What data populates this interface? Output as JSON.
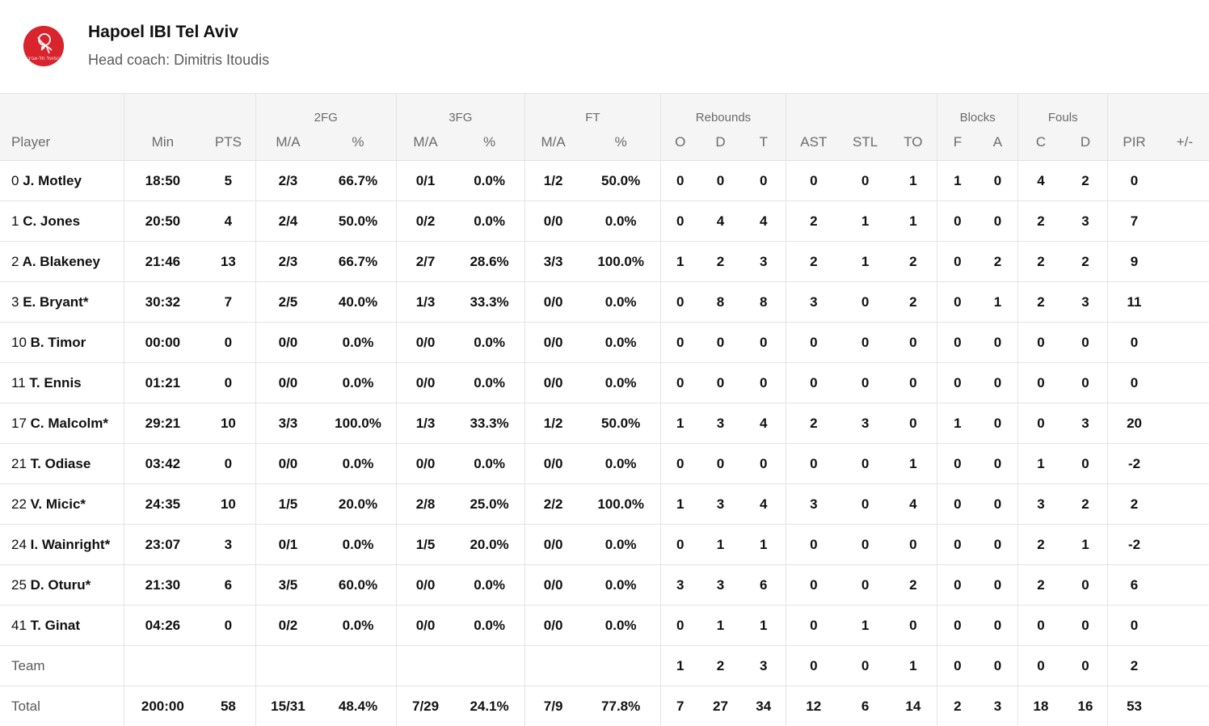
{
  "team": {
    "name": "Hapoel IBI Tel Aviv",
    "coach": "Head coach: Dimitris Itoudis",
    "logo_text": "הפועל תל-אביב",
    "accent_color": "#d9232d"
  },
  "groups": {
    "fg2": "2FG",
    "fg3": "3FG",
    "ft": "FT",
    "rebounds": "Rebounds",
    "blocks": "Blocks",
    "fouls": "Fouls"
  },
  "columns": {
    "player": "Player",
    "min": "Min",
    "pts": "PTS",
    "fg2_ma": "M/A",
    "fg2_pct": "%",
    "fg3_ma": "M/A",
    "fg3_pct": "%",
    "ft_ma": "M/A",
    "ft_pct": "%",
    "reb_o": "O",
    "reb_d": "D",
    "reb_t": "T",
    "ast": "AST",
    "stl": "STL",
    "to": "TO",
    "blk_f": "F",
    "blk_a": "A",
    "foul_c": "C",
    "foul_d": "D",
    "pir": "PIR",
    "pm": "+/-"
  },
  "rows": [
    {
      "num": "0",
      "name": "J. Motley",
      "min": "18:50",
      "pts": "5",
      "fg2_ma": "2/3",
      "fg2_pct": "66.7%",
      "fg3_ma": "0/1",
      "fg3_pct": "0.0%",
      "ft_ma": "1/2",
      "ft_pct": "50.0%",
      "reb_o": "0",
      "reb_d": "0",
      "reb_t": "0",
      "ast": "0",
      "stl": "0",
      "to": "1",
      "blk_f": "1",
      "blk_a": "0",
      "foul_c": "4",
      "foul_d": "2",
      "pir": "0",
      "pm": ""
    },
    {
      "num": "1",
      "name": "C. Jones",
      "min": "20:50",
      "pts": "4",
      "fg2_ma": "2/4",
      "fg2_pct": "50.0%",
      "fg3_ma": "0/2",
      "fg3_pct": "0.0%",
      "ft_ma": "0/0",
      "ft_pct": "0.0%",
      "reb_o": "0",
      "reb_d": "4",
      "reb_t": "4",
      "ast": "2",
      "stl": "1",
      "to": "1",
      "blk_f": "0",
      "blk_a": "0",
      "foul_c": "2",
      "foul_d": "3",
      "pir": "7",
      "pm": ""
    },
    {
      "num": "2",
      "name": "A. Blakeney",
      "min": "21:46",
      "pts": "13",
      "fg2_ma": "2/3",
      "fg2_pct": "66.7%",
      "fg3_ma": "2/7",
      "fg3_pct": "28.6%",
      "ft_ma": "3/3",
      "ft_pct": "100.0%",
      "reb_o": "1",
      "reb_d": "2",
      "reb_t": "3",
      "ast": "2",
      "stl": "1",
      "to": "2",
      "blk_f": "0",
      "blk_a": "2",
      "foul_c": "2",
      "foul_d": "2",
      "pir": "9",
      "pm": ""
    },
    {
      "num": "3",
      "name": "E. Bryant*",
      "min": "30:32",
      "pts": "7",
      "fg2_ma": "2/5",
      "fg2_pct": "40.0%",
      "fg3_ma": "1/3",
      "fg3_pct": "33.3%",
      "ft_ma": "0/0",
      "ft_pct": "0.0%",
      "reb_o": "0",
      "reb_d": "8",
      "reb_t": "8",
      "ast": "3",
      "stl": "0",
      "to": "2",
      "blk_f": "0",
      "blk_a": "1",
      "foul_c": "2",
      "foul_d": "3",
      "pir": "11",
      "pm": ""
    },
    {
      "num": "10",
      "name": "B. Timor",
      "min": "00:00",
      "pts": "0",
      "fg2_ma": "0/0",
      "fg2_pct": "0.0%",
      "fg3_ma": "0/0",
      "fg3_pct": "0.0%",
      "ft_ma": "0/0",
      "ft_pct": "0.0%",
      "reb_o": "0",
      "reb_d": "0",
      "reb_t": "0",
      "ast": "0",
      "stl": "0",
      "to": "0",
      "blk_f": "0",
      "blk_a": "0",
      "foul_c": "0",
      "foul_d": "0",
      "pir": "0",
      "pm": ""
    },
    {
      "num": "11",
      "name": "T. Ennis",
      "min": "01:21",
      "pts": "0",
      "fg2_ma": "0/0",
      "fg2_pct": "0.0%",
      "fg3_ma": "0/0",
      "fg3_pct": "0.0%",
      "ft_ma": "0/0",
      "ft_pct": "0.0%",
      "reb_o": "0",
      "reb_d": "0",
      "reb_t": "0",
      "ast": "0",
      "stl": "0",
      "to": "0",
      "blk_f": "0",
      "blk_a": "0",
      "foul_c": "0",
      "foul_d": "0",
      "pir": "0",
      "pm": ""
    },
    {
      "num": "17",
      "name": "C. Malcolm*",
      "min": "29:21",
      "pts": "10",
      "fg2_ma": "3/3",
      "fg2_pct": "100.0%",
      "fg3_ma": "1/3",
      "fg3_pct": "33.3%",
      "ft_ma": "1/2",
      "ft_pct": "50.0%",
      "reb_o": "1",
      "reb_d": "3",
      "reb_t": "4",
      "ast": "2",
      "stl": "3",
      "to": "0",
      "blk_f": "1",
      "blk_a": "0",
      "foul_c": "0",
      "foul_d": "3",
      "pir": "20",
      "pm": ""
    },
    {
      "num": "21",
      "name": "T. Odiase",
      "min": "03:42",
      "pts": "0",
      "fg2_ma": "0/0",
      "fg2_pct": "0.0%",
      "fg3_ma": "0/0",
      "fg3_pct": "0.0%",
      "ft_ma": "0/0",
      "ft_pct": "0.0%",
      "reb_o": "0",
      "reb_d": "0",
      "reb_t": "0",
      "ast": "0",
      "stl": "0",
      "to": "1",
      "blk_f": "0",
      "blk_a": "0",
      "foul_c": "1",
      "foul_d": "0",
      "pir": "-2",
      "pm": ""
    },
    {
      "num": "22",
      "name": "V. Micic*",
      "min": "24:35",
      "pts": "10",
      "fg2_ma": "1/5",
      "fg2_pct": "20.0%",
      "fg3_ma": "2/8",
      "fg3_pct": "25.0%",
      "ft_ma": "2/2",
      "ft_pct": "100.0%",
      "reb_o": "1",
      "reb_d": "3",
      "reb_t": "4",
      "ast": "3",
      "stl": "0",
      "to": "4",
      "blk_f": "0",
      "blk_a": "0",
      "foul_c": "3",
      "foul_d": "2",
      "pir": "2",
      "pm": ""
    },
    {
      "num": "24",
      "name": "I. Wainright*",
      "min": "23:07",
      "pts": "3",
      "fg2_ma": "0/1",
      "fg2_pct": "0.0%",
      "fg3_ma": "1/5",
      "fg3_pct": "20.0%",
      "ft_ma": "0/0",
      "ft_pct": "0.0%",
      "reb_o": "0",
      "reb_d": "1",
      "reb_t": "1",
      "ast": "0",
      "stl": "0",
      "to": "0",
      "blk_f": "0",
      "blk_a": "0",
      "foul_c": "2",
      "foul_d": "1",
      "pir": "-2",
      "pm": ""
    },
    {
      "num": "25",
      "name": "D. Oturu*",
      "min": "21:30",
      "pts": "6",
      "fg2_ma": "3/5",
      "fg2_pct": "60.0%",
      "fg3_ma": "0/0",
      "fg3_pct": "0.0%",
      "ft_ma": "0/0",
      "ft_pct": "0.0%",
      "reb_o": "3",
      "reb_d": "3",
      "reb_t": "6",
      "ast": "0",
      "stl": "0",
      "to": "2",
      "blk_f": "0",
      "blk_a": "0",
      "foul_c": "2",
      "foul_d": "0",
      "pir": "6",
      "pm": ""
    },
    {
      "num": "41",
      "name": "T. Ginat",
      "min": "04:26",
      "pts": "0",
      "fg2_ma": "0/2",
      "fg2_pct": "0.0%",
      "fg3_ma": "0/0",
      "fg3_pct": "0.0%",
      "ft_ma": "0/0",
      "ft_pct": "0.0%",
      "reb_o": "0",
      "reb_d": "1",
      "reb_t": "1",
      "ast": "0",
      "stl": "1",
      "to": "0",
      "blk_f": "0",
      "blk_a": "0",
      "foul_c": "0",
      "foul_d": "0",
      "pir": "0",
      "pm": ""
    },
    {
      "num": "",
      "name": "Team",
      "muted": true,
      "min": "",
      "pts": "",
      "fg2_ma": "",
      "fg2_pct": "",
      "fg3_ma": "",
      "fg3_pct": "",
      "ft_ma": "",
      "ft_pct": "",
      "reb_o": "1",
      "reb_d": "2",
      "reb_t": "3",
      "ast": "0",
      "stl": "0",
      "to": "1",
      "blk_f": "0",
      "blk_a": "0",
      "foul_c": "0",
      "foul_d": "0",
      "pir": "2",
      "pm": ""
    },
    {
      "num": "",
      "name": "Total",
      "muted": true,
      "min": "200:00",
      "pts": "58",
      "fg2_ma": "15/31",
      "fg2_pct": "48.4%",
      "fg3_ma": "7/29",
      "fg3_pct": "24.1%",
      "ft_ma": "7/9",
      "ft_pct": "77.8%",
      "reb_o": "7",
      "reb_d": "27",
      "reb_t": "34",
      "ast": "12",
      "stl": "6",
      "to": "14",
      "blk_f": "2",
      "blk_a": "3",
      "foul_c": "18",
      "foul_d": "16",
      "pir": "53",
      "pm": ""
    }
  ]
}
